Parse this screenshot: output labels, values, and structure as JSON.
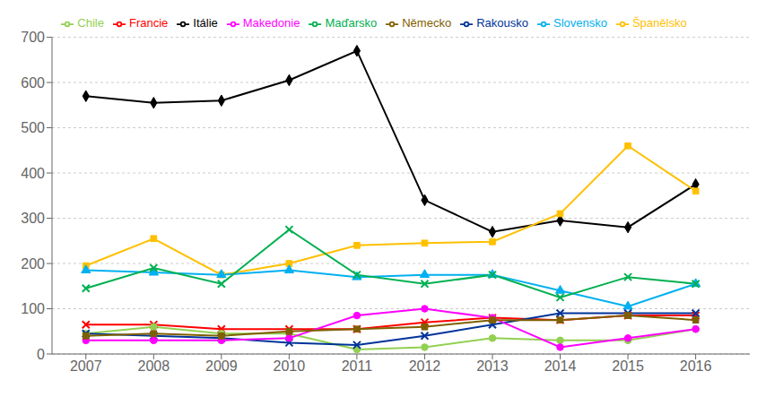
{
  "chart_data": {
    "type": "line",
    "x": [
      2007,
      2008,
      2009,
      2010,
      2011,
      2012,
      2013,
      2014,
      2015,
      2016
    ],
    "xlim": [
      2006.5,
      2016.8
    ],
    "xticks": [
      2007,
      2008,
      2009,
      2010,
      2011,
      2012,
      2013,
      2014,
      2015,
      2016
    ],
    "ylim": [
      0,
      700
    ],
    "yticks": [
      0,
      100,
      200,
      300,
      400,
      500,
      600,
      700
    ],
    "grid": true,
    "legend": "top",
    "series": [
      {
        "name": "Itálie",
        "color": "#000000",
        "marker": "diamond",
        "values": [
          570,
          555,
          560,
          605,
          670,
          340,
          270,
          295,
          280,
          375
        ]
      },
      {
        "name": "Španělsko",
        "color": "#FFC000",
        "marker": "square",
        "values": [
          195,
          255,
          175,
          200,
          240,
          245,
          248,
          310,
          460,
          360
        ]
      },
      {
        "name": "Slovensko",
        "color": "#00B0F0",
        "marker": "triangle",
        "values": [
          185,
          180,
          175,
          185,
          170,
          175,
          175,
          140,
          105,
          155
        ]
      },
      {
        "name": "Maďarsko",
        "color": "#00B050",
        "marker": "cross",
        "values": [
          145,
          190,
          155,
          275,
          175,
          155,
          175,
          125,
          170,
          155
        ]
      },
      {
        "name": "Francie",
        "color": "#FF0000",
        "marker": "cross",
        "values": [
          65,
          65,
          55,
          55,
          55,
          70,
          80,
          75,
          85,
          85
        ]
      },
      {
        "name": "Chile",
        "color": "#92D050",
        "marker": "circle",
        "values": [
          45,
          60,
          45,
          45,
          10,
          15,
          35,
          30,
          30,
          55
        ]
      },
      {
        "name": "Rakousko",
        "color": "#003399",
        "marker": "cross",
        "values": [
          45,
          40,
          35,
          25,
          20,
          40,
          65,
          90,
          90,
          90
        ]
      },
      {
        "name": "Makedonie",
        "color": "#FF00FF",
        "marker": "circle",
        "values": [
          30,
          30,
          30,
          35,
          85,
          100,
          80,
          15,
          35,
          55
        ]
      },
      {
        "name": "Německo",
        "color": "#7F6000",
        "marker": "square",
        "values": [
          40,
          45,
          40,
          50,
          55,
          60,
          75,
          75,
          85,
          75
        ]
      }
    ]
  }
}
